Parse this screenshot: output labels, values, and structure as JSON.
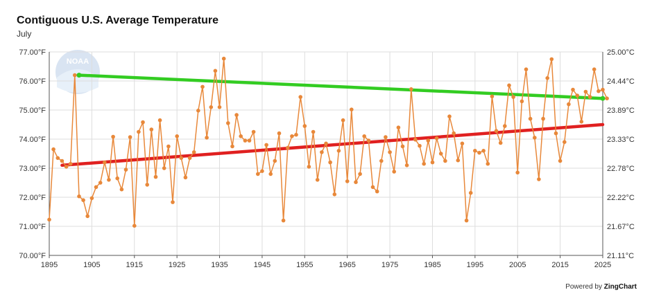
{
  "chart_data": {
    "type": "line",
    "title": "Contiguous U.S. Average Temperature",
    "subtitle": "July",
    "x_ticks": [
      1895,
      1905,
      1915,
      1925,
      1935,
      1945,
      1955,
      1965,
      1975,
      1985,
      1995,
      2005,
      2015,
      2025
    ],
    "y_ticks_left": [
      "77.00°F",
      "76.00°F",
      "75.00°F",
      "74.00°F",
      "73.00°F",
      "72.00°F",
      "71.00°F",
      "70.00°F"
    ],
    "y_ticks_right": [
      "25.00°C",
      "24.44°C",
      "23.89°C",
      "23.33°C",
      "22.78°C",
      "22.22°C",
      "21.67°C",
      "21.11°C"
    ],
    "xlim": [
      1895,
      2025
    ],
    "ylim_left": [
      70,
      77
    ],
    "ylim_right": [
      21.11,
      25.0
    ],
    "grid": true,
    "series": [
      {
        "color": "#e8883a",
        "x_start": 1895,
        "values": [
          71.23,
          73.65,
          73.35,
          73.25,
          73.05,
          73.15,
          76.2,
          72.03,
          71.9,
          71.35,
          71.97,
          72.35,
          72.5,
          73.2,
          72.6,
          74.08,
          72.65,
          72.27,
          72.95,
          74.07,
          71.02,
          74.25,
          74.58,
          72.43,
          74.33,
          72.7,
          74.65,
          73.0,
          73.75,
          71.83,
          74.1,
          73.35,
          72.68,
          73.35,
          73.55,
          74.98,
          75.8,
          74.05,
          75.1,
          76.35,
          75.1,
          76.77,
          74.55,
          73.75,
          74.83,
          74.1,
          73.95,
          73.95,
          74.25,
          72.8,
          72.9,
          73.8,
          72.8,
          73.25,
          74.2,
          71.2,
          73.7,
          74.1,
          74.15,
          75.45,
          74.45,
          73.05,
          74.25,
          72.6,
          73.55,
          73.85,
          73.2,
          72.1,
          73.6,
          74.65,
          72.55,
          75.02,
          72.52,
          72.8,
          74.1,
          73.95,
          72.35,
          72.2,
          73.25,
          74.07,
          73.55,
          72.88,
          74.4,
          73.75,
          73.1,
          75.72,
          73.98,
          73.77,
          73.15,
          73.95,
          73.2,
          74.03,
          73.5,
          73.25,
          74.78,
          74.2,
          73.27,
          73.85,
          71.2,
          72.15,
          73.6,
          73.53,
          73.6,
          73.15,
          75.47,
          74.28,
          73.87,
          74.45,
          75.85,
          75.45,
          72.85,
          75.3,
          76.4,
          74.7,
          74.05,
          72.62,
          74.7,
          76.1,
          76.75,
          74.2,
          73.25,
          73.9,
          75.2,
          75.7,
          75.5,
          74.6,
          75.63,
          75.45,
          76.4,
          75.65,
          75.7,
          75.4
        ]
      },
      {
        "color": "#33cc22",
        "x": [
          1902,
          2025
        ],
        "values": [
          76.2,
          75.4
        ]
      },
      {
        "color": "#e02020",
        "x": [
          1898,
          2025
        ],
        "values": [
          73.1,
          74.5
        ]
      }
    ]
  },
  "logo": {
    "icon": "noaa-logo-watermark",
    "text": "NOAA"
  },
  "credit": {
    "prefix": "Powered by",
    "brand": "ZingChart"
  }
}
